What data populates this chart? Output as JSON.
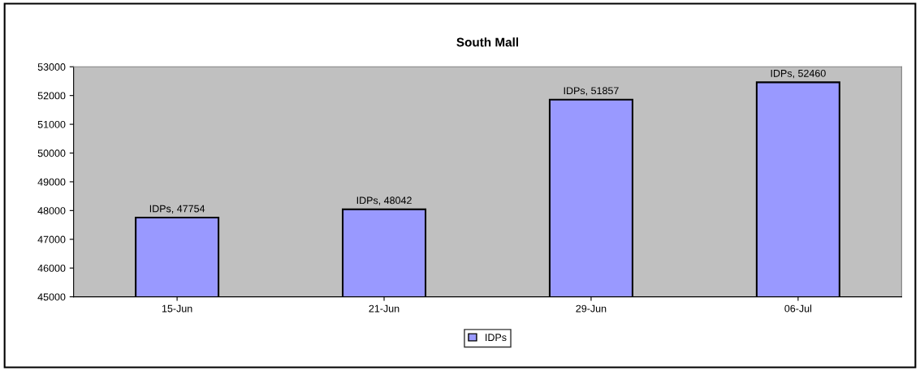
{
  "chart_data": {
    "type": "bar",
    "title": "South Mall",
    "categories": [
      "15-Jun",
      "21-Jun",
      "29-Jun",
      "06-Jul"
    ],
    "series": [
      {
        "name": "IDPs",
        "color": "#9999ff",
        "values": [
          47754,
          48042,
          51857,
          52460
        ],
        "value_labels": [
          "IDPs, 47754",
          "IDPs, 48042",
          "IDPs, 51857",
          "IDPs, 52460"
        ]
      }
    ],
    "ylim": [
      45000,
      53000
    ],
    "yticks": [
      45000,
      46000,
      47000,
      48000,
      49000,
      50000,
      51000,
      52000,
      53000
    ],
    "grid": false,
    "legend": "bottom"
  }
}
